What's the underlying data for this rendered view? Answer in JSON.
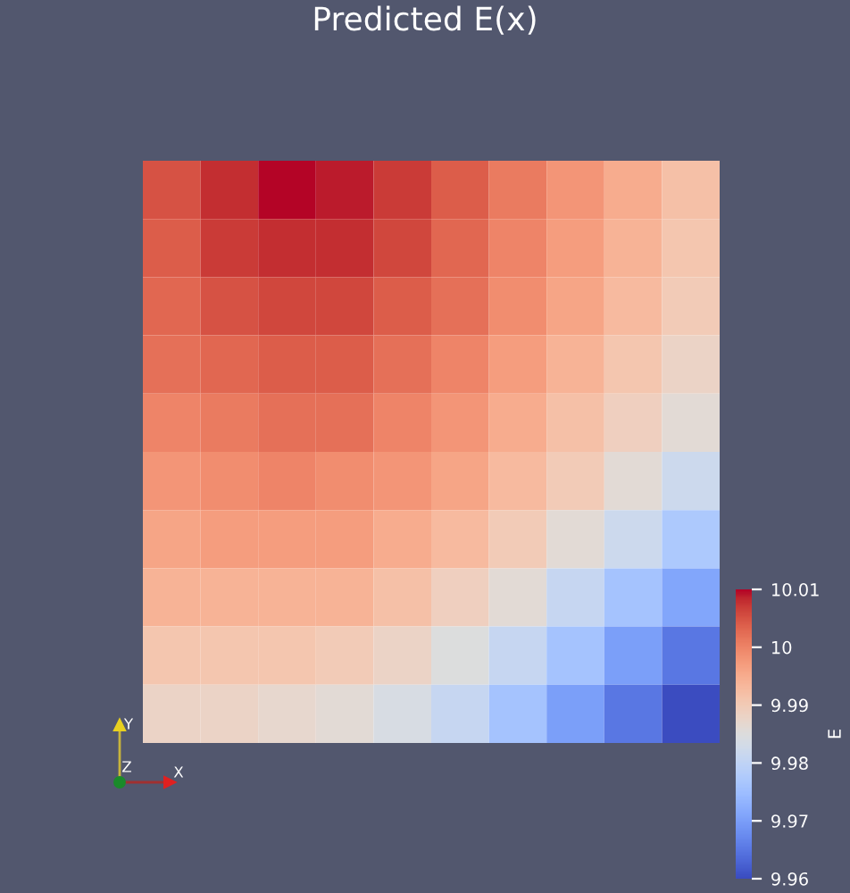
{
  "chart_data": {
    "type": "heatmap",
    "title": "Predicted E(x)",
    "clabel": "E",
    "annotations": [
      "Y",
      "Z",
      "X"
    ],
    "categories": [
      null,
      null,
      null,
      null,
      null,
      null,
      null,
      null,
      null,
      null
    ],
    "y_categories": [
      null,
      null,
      null,
      null,
      null,
      null,
      null,
      null,
      null,
      null
    ],
    "tick_labels": false,
    "clim": [
      9.96,
      10.01
    ],
    "cticks": [
      9.96,
      9.97,
      9.98,
      9.99,
      10,
      10.01
    ],
    "cells": [
      [
        10.005,
        10.008,
        10.01,
        10.009,
        10.007,
        10.004,
        10.001,
        9.998,
        9.995,
        9.992
      ],
      [
        10.004,
        10.007,
        10.008,
        10.008,
        10.006,
        10.003,
        10.0,
        9.997,
        9.994,
        9.991
      ],
      [
        10.003,
        10.005,
        10.006,
        10.006,
        10.004,
        10.002,
        9.999,
        9.996,
        9.993,
        9.99
      ],
      [
        10.002,
        10.003,
        10.004,
        10.004,
        10.002,
        10.0,
        9.997,
        9.994,
        9.991,
        9.988
      ],
      [
        10.0,
        10.001,
        10.002,
        10.002,
        10.0,
        9.998,
        9.995,
        9.992,
        9.989,
        9.986
      ],
      [
        9.998,
        9.999,
        10.0,
        9.999,
        9.998,
        9.996,
        9.993,
        9.99,
        9.986,
        9.982
      ],
      [
        9.996,
        9.997,
        9.997,
        9.997,
        9.995,
        9.993,
        9.99,
        9.986,
        9.982,
        9.977
      ],
      [
        9.994,
        9.994,
        9.994,
        9.994,
        9.992,
        9.989,
        9.986,
        9.981,
        9.976,
        9.971
      ],
      [
        9.991,
        9.991,
        9.991,
        9.99,
        9.988,
        9.985,
        9.981,
        9.976,
        9.97,
        9.965
      ],
      [
        9.988,
        9.988,
        9.987,
        9.986,
        9.984,
        9.981,
        9.976,
        9.97,
        9.965,
        9.96
      ]
    ]
  }
}
